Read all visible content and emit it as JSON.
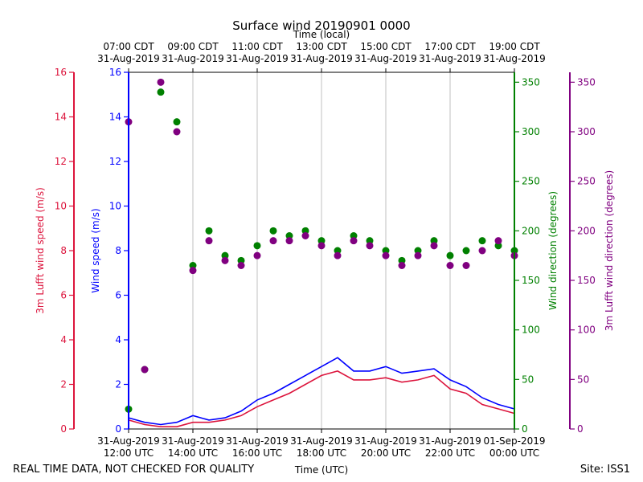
{
  "chart_data": {
    "type": "scatter",
    "title": "Surface wind 20190901 0000",
    "top_axis": {
      "label": "Time (local)",
      "ticks": [
        {
          "time": "07:00 CDT",
          "date": "31-Aug-2019"
        },
        {
          "time": "09:00 CDT",
          "date": "31-Aug-2019"
        },
        {
          "time": "11:00 CDT",
          "date": "31-Aug-2019"
        },
        {
          "time": "13:00 CDT",
          "date": "31-Aug-2019"
        },
        {
          "time": "15:00 CDT",
          "date": "31-Aug-2019"
        },
        {
          "time": "17:00 CDT",
          "date": "31-Aug-2019"
        },
        {
          "time": "19:00 CDT",
          "date": "31-Aug-2019"
        }
      ]
    },
    "bottom_axis": {
      "label": "Time (UTC)",
      "range_hours": [
        12,
        24
      ],
      "ticks": [
        {
          "date": "31-Aug-2019",
          "time": "12:00 UTC"
        },
        {
          "date": "31-Aug-2019",
          "time": "14:00 UTC"
        },
        {
          "date": "31-Aug-2019",
          "time": "16:00 UTC"
        },
        {
          "date": "31-Aug-2019",
          "time": "18:00 UTC"
        },
        {
          "date": "31-Aug-2019",
          "time": "20:00 UTC"
        },
        {
          "date": "31-Aug-2019",
          "time": "22:00 UTC"
        },
        {
          "date": "01-Sep-2019",
          "time": "00:00 UTC"
        }
      ]
    },
    "axes": {
      "lufft_speed": {
        "label": "3m Lufft wind speed (m/s)",
        "ylim": [
          0,
          16
        ],
        "ticks": [
          "0",
          "2",
          "4",
          "6",
          "8",
          "10",
          "12",
          "14",
          "16"
        ],
        "color": "#dc143c"
      },
      "wind_speed": {
        "label": "Wind speed (m/s)",
        "ylim": [
          0,
          16
        ],
        "ticks": [
          "0",
          "2",
          "4",
          "6",
          "8",
          "10",
          "12",
          "14",
          "16"
        ],
        "color": "#0000ff"
      },
      "wind_dir": {
        "label": "Wind direction (degrees)",
        "ylim": [
          0,
          360
        ],
        "ticks": [
          "0",
          "50",
          "100",
          "150",
          "200",
          "250",
          "300",
          "350"
        ],
        "color": "#008000"
      },
      "lufft_dir": {
        "label": "3m Lufft wind direction (degrees)",
        "ylim": [
          0,
          360
        ],
        "ticks": [
          "0",
          "50",
          "100",
          "150",
          "200",
          "250",
          "300",
          "350"
        ],
        "color": "#800080"
      }
    },
    "series": [
      {
        "name": "Wind speed (m/s)",
        "kind": "line",
        "color": "#0000ff",
        "x": [
          12.0,
          12.5,
          13.0,
          13.5,
          14.0,
          14.5,
          15.0,
          15.5,
          16.0,
          16.5,
          17.0,
          17.5,
          18.0,
          18.5,
          19.0,
          19.5,
          20.0,
          20.5,
          21.0,
          21.5,
          22.0,
          22.5,
          23.0,
          23.5,
          24.0
        ],
        "y": [
          0.5,
          0.3,
          0.2,
          0.3,
          0.6,
          0.4,
          0.5,
          0.8,
          1.3,
          1.6,
          2.0,
          2.4,
          2.8,
          3.2,
          2.6,
          2.6,
          2.8,
          2.5,
          2.6,
          2.7,
          2.2,
          1.9,
          1.4,
          1.1,
          0.9
        ]
      },
      {
        "name": "3m Lufft wind speed (m/s)",
        "kind": "line",
        "color": "#dc143c",
        "x": [
          12.0,
          12.5,
          13.0,
          13.5,
          14.0,
          14.5,
          15.0,
          15.5,
          16.0,
          16.5,
          17.0,
          17.5,
          18.0,
          18.5,
          19.0,
          19.5,
          20.0,
          20.5,
          21.0,
          21.5,
          22.0,
          22.5,
          23.0,
          23.5,
          24.0
        ],
        "y": [
          0.4,
          0.2,
          0.1,
          0.1,
          0.3,
          0.3,
          0.4,
          0.6,
          1.0,
          1.3,
          1.6,
          2.0,
          2.4,
          2.6,
          2.2,
          2.2,
          2.3,
          2.1,
          2.2,
          2.4,
          1.8,
          1.6,
          1.1,
          0.9,
          0.7
        ]
      },
      {
        "name": "Wind direction (degrees)",
        "kind": "scatter",
        "color": "#008000",
        "x": [
          12.0,
          12.5,
          13.0,
          13.5,
          14.0,
          14.5,
          15.0,
          15.5,
          16.0,
          16.5,
          17.0,
          17.5,
          18.0,
          18.5,
          19.0,
          19.5,
          20.0,
          20.5,
          21.0,
          21.5,
          22.0,
          22.5,
          23.0,
          23.5,
          24.0
        ],
        "y": [
          20,
          60,
          340,
          310,
          165,
          200,
          175,
          170,
          185,
          200,
          195,
          200,
          190,
          180,
          195,
          190,
          180,
          170,
          180,
          190,
          175,
          180,
          190,
          185,
          180
        ]
      },
      {
        "name": "3m Lufft wind direction (degrees)",
        "kind": "scatter",
        "color": "#800080",
        "x": [
          12.0,
          12.5,
          13.0,
          13.5,
          14.0,
          14.5,
          15.0,
          15.5,
          16.0,
          16.5,
          17.0,
          17.5,
          18.0,
          18.5,
          19.0,
          19.5,
          20.0,
          20.5,
          21.0,
          21.5,
          22.0,
          22.5,
          23.0,
          23.5,
          24.0
        ],
        "y": [
          310,
          60,
          350,
          300,
          160,
          190,
          170,
          165,
          175,
          190,
          190,
          195,
          185,
          175,
          190,
          185,
          175,
          165,
          175,
          185,
          165,
          165,
          180,
          190,
          175
        ]
      }
    ]
  },
  "footer": {
    "left": "REAL TIME DATA, NOT CHECKED FOR QUALITY",
    "right": "Site: ISS1"
  }
}
